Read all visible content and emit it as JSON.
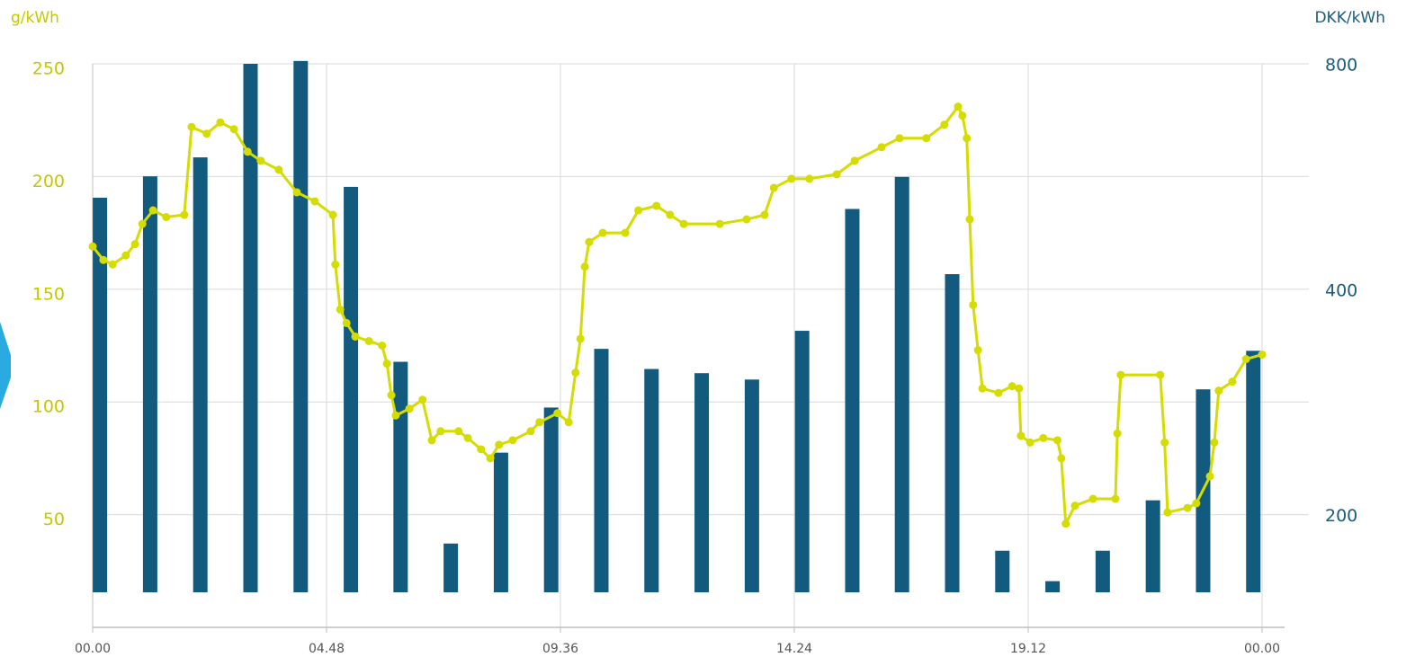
{
  "chart_data": {
    "type": "bar-line",
    "ylabel": "g/kWh",
    "y2label": "DKK/kWh",
    "xlim": [
      0,
      24
    ],
    "xticks": [
      {
        "value": 0,
        "label": "00.00"
      },
      {
        "value": 4.8,
        "label": "04.48"
      },
      {
        "value": 9.6,
        "label": "09.36"
      },
      {
        "value": 14.4,
        "label": "14.24"
      },
      {
        "value": 19.2,
        "label": "19.12"
      },
      {
        "value": 24,
        "label": "00.00"
      }
    ],
    "ylim": [
      0,
      250
    ],
    "yticks": [
      50,
      100,
      150,
      200,
      250
    ],
    "y2lim": [
      141.42,
      800
    ],
    "y2ticks": [
      200,
      400,
      800
    ],
    "y2log": true,
    "grid": true,
    "series": [
      {
        "type": "bar",
        "axis": "y2",
        "color": "#135b7e",
        "x": [
          0.15,
          1.18,
          2.21,
          3.24,
          4.27,
          5.3,
          6.32,
          7.35,
          8.38,
          9.41,
          10.44,
          11.47,
          12.5,
          13.53,
          14.56,
          15.59,
          16.61,
          17.64,
          18.67,
          19.7,
          20.73,
          21.76,
          22.79,
          23.82
        ],
        "values": [
          530,
          566,
          600,
          800,
          807,
          548,
          320,
          183,
          242,
          278,
          333,
          313,
          309,
          303,
          352,
          512,
          565,
          419,
          179,
          163,
          179,
          209,
          294,
          331
        ]
      },
      {
        "type": "line",
        "axis": "y",
        "color": "#d4dc00",
        "x": [
          0,
          0.22,
          0.41,
          0.68,
          0.87,
          1.02,
          1.24,
          1.51,
          1.88,
          2.03,
          2.34,
          2.62,
          2.9,
          3.18,
          3.45,
          3.82,
          4.19,
          4.56,
          4.93,
          4.98,
          5.08,
          5.21,
          5.39,
          5.67,
          5.94,
          6.04,
          6.13,
          6.22,
          6.5,
          6.77,
          6.96,
          7.14,
          7.51,
          7.7,
          7.97,
          8.16,
          8.34,
          8.62,
          8.99,
          9.17,
          9.54,
          9.77,
          9.91,
          10.01,
          10.1,
          10.19,
          10.47,
          10.93,
          11.2,
          11.57,
          11.85,
          12.13,
          12.87,
          13.42,
          13.79,
          13.98,
          14.34,
          14.71,
          15.27,
          15.64,
          16.19,
          16.56,
          17.11,
          17.48,
          17.76,
          17.85,
          17.94,
          18.0,
          18.07,
          18.17,
          18.26,
          18.59,
          18.87,
          19.01,
          19.05,
          19.24,
          19.51,
          19.8,
          19.88,
          19.97,
          20.16,
          20.53,
          20.99,
          21.03,
          21.1,
          21.91,
          22.0,
          22.06,
          22.47,
          22.65,
          22.93,
          23.02,
          23.11,
          23.39,
          23.67,
          24.0
        ],
        "values": [
          169,
          163,
          161,
          165,
          170,
          179,
          185,
          182,
          183,
          222,
          219,
          224,
          221,
          211,
          207,
          203,
          193,
          189,
          183,
          161,
          141,
          135,
          129,
          127,
          125,
          117,
          103,
          94,
          97,
          101,
          83,
          87,
          87,
          84,
          79,
          75,
          81,
          83,
          87,
          91,
          95,
          91,
          113,
          128,
          160,
          171,
          175,
          175,
          185,
          187,
          183,
          179,
          179,
          181,
          183,
          195,
          199,
          199,
          201,
          207,
          213,
          217,
          217,
          223,
          231,
          227,
          217,
          181,
          143,
          123,
          106,
          104,
          107,
          106,
          85,
          82,
          84,
          83,
          75,
          46,
          54,
          57,
          57,
          86,
          112,
          112,
          82,
          51,
          53,
          55,
          67,
          82,
          105,
          109,
          119,
          121
        ]
      }
    ]
  }
}
